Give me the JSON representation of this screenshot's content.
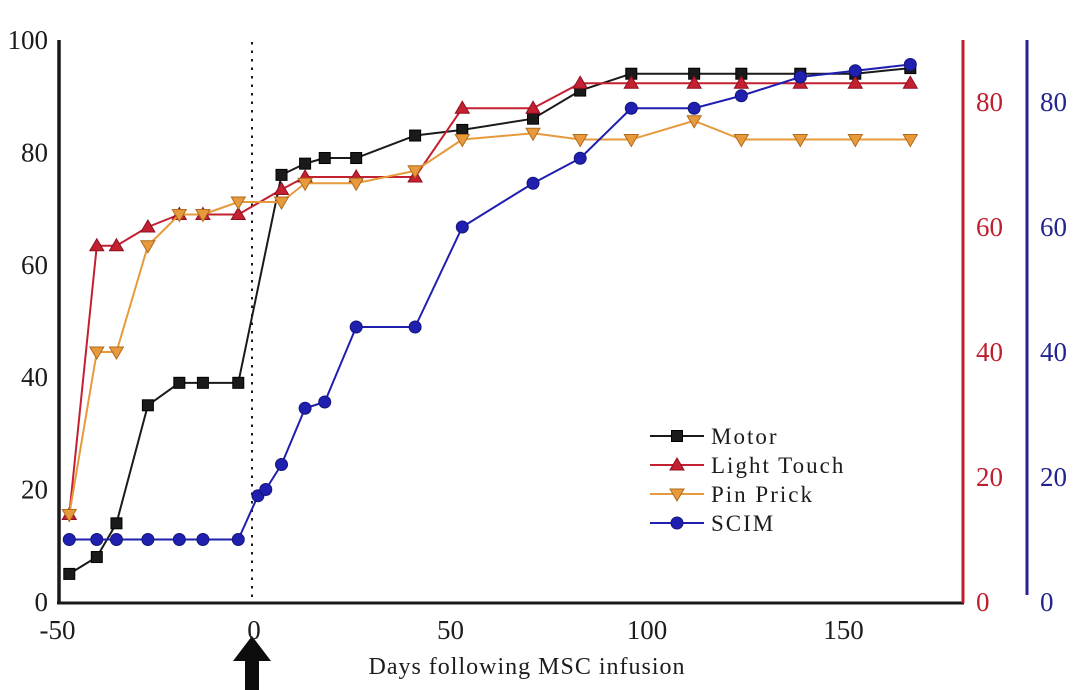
{
  "chart_data": {
    "type": "line",
    "title": "",
    "xlabel": "Days following MSC infusion",
    "grid": false,
    "legend_position": "lower-right",
    "x_axis": {
      "ticks": [
        -50,
        0,
        50,
        100,
        150
      ],
      "range": [
        -50,
        178
      ]
    },
    "axes": {
      "left": {
        "color": "#1a1a1a",
        "ticks": [
          0,
          20,
          40,
          60,
          80,
          100
        ],
        "range": [
          0,
          100
        ]
      },
      "right_red": {
        "color": "#bf1e2e",
        "ticks": [
          0,
          20,
          40,
          60,
          80
        ],
        "range": [
          0,
          90
        ]
      },
      "right_blue": {
        "color": "#24248f",
        "ticks": [
          0,
          20,
          40,
          60,
          80
        ],
        "range": [
          0,
          90
        ]
      }
    },
    "annotations": {
      "infusion_event_day": 0,
      "event_line_style": "dotted",
      "arrow_day": 0
    },
    "series": [
      {
        "name": "Motor",
        "axis": "left",
        "marker": "square",
        "color": "#1a1a1a",
        "edge": "#000000",
        "x": [
          -47,
          -40,
          -35,
          -27,
          -19,
          -13,
          -4,
          7,
          13,
          18,
          26,
          41,
          53,
          71,
          83,
          96,
          112,
          124,
          139,
          153,
          167
        ],
        "values": [
          5,
          8,
          14,
          35,
          39,
          39,
          39,
          76,
          78,
          79,
          79,
          83,
          84,
          86,
          91,
          94,
          94,
          94,
          94,
          94,
          95
        ]
      },
      {
        "name": "Light Touch",
        "axis": "red",
        "marker": "triangle-up",
        "color": "#c32031",
        "edge": "#8f1020",
        "x": [
          -47,
          -40,
          -35,
          -27,
          -19,
          -13,
          -4,
          7,
          13,
          26,
          41,
          53,
          71,
          83,
          96,
          112,
          124,
          139,
          153,
          167
        ],
        "values": [
          14,
          57,
          57,
          60,
          62,
          62,
          62,
          66,
          68,
          68,
          68,
          79,
          79,
          83,
          83,
          83,
          83,
          83,
          83,
          83
        ]
      },
      {
        "name": "Pin Prick",
        "axis": "red",
        "marker": "triangle-down",
        "color": "#e79a3c",
        "edge": "#b26a1b",
        "x": [
          -47,
          -40,
          -35,
          -27,
          -19,
          -13,
          -4,
          7,
          13,
          26,
          41,
          53,
          71,
          83,
          96,
          112,
          124,
          139,
          153,
          167
        ],
        "values": [
          14,
          40,
          40,
          57,
          62,
          62,
          64,
          64,
          67,
          67,
          69,
          74,
          75,
          74,
          74,
          77,
          74,
          74,
          74,
          74
        ]
      },
      {
        "name": "SCIM",
        "axis": "blue",
        "marker": "circle",
        "color": "#1f1fb0",
        "edge": "#15157a",
        "x": [
          -47,
          -40,
          -35,
          -27,
          -19,
          -13,
          -4,
          1,
          3,
          7,
          13,
          18,
          26,
          41,
          53,
          71,
          83,
          96,
          112,
          124,
          139,
          153,
          167
        ],
        "values": [
          10,
          10,
          10,
          10,
          10,
          10,
          10,
          17,
          18,
          22,
          31,
          32,
          44,
          44,
          60,
          67,
          71,
          79,
          79,
          81,
          84,
          85,
          86
        ]
      }
    ],
    "legend": [
      "Motor",
      "Light Touch",
      "Pin Prick",
      "SCIM"
    ]
  }
}
